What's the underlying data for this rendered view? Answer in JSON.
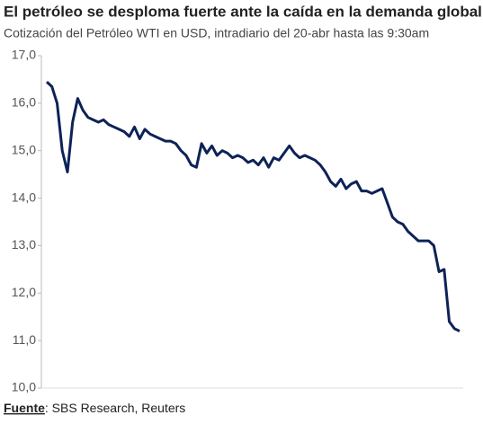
{
  "chart_data": {
    "type": "line",
    "title": "El petróleo se desploma fuerte ante la caída en la demanda global",
    "subtitle": "Cotización del Petróleo WTI en USD, intradiario del 20-abr hasta las 9:30am",
    "source_label": "Fuente",
    "source_text": ": SBS Research, Reuters",
    "color": "#0d2257",
    "ylim": [
      10,
      17
    ],
    "yticks": [
      {
        "value": 10,
        "label": "10,0"
      },
      {
        "value": 11,
        "label": "11,0"
      },
      {
        "value": 12,
        "label": "12,0"
      },
      {
        "value": 13,
        "label": "13,0"
      },
      {
        "value": 14,
        "label": "14,0"
      },
      {
        "value": 15,
        "label": "15,0"
      },
      {
        "value": 16,
        "label": "16,0"
      },
      {
        "value": 17,
        "label": "17,0"
      }
    ],
    "values": [
      16.45,
      16.35,
      16.0,
      15.0,
      14.55,
      15.6,
      16.1,
      15.85,
      15.7,
      15.65,
      15.6,
      15.65,
      15.55,
      15.5,
      15.45,
      15.4,
      15.3,
      15.5,
      15.25,
      15.45,
      15.35,
      15.3,
      15.25,
      15.2,
      15.2,
      15.15,
      15.0,
      14.9,
      14.7,
      14.65,
      15.15,
      14.95,
      15.1,
      14.9,
      15.0,
      14.95,
      14.85,
      14.9,
      14.85,
      14.75,
      14.8,
      14.7,
      14.85,
      14.65,
      14.85,
      14.8,
      14.95,
      15.1,
      14.95,
      14.85,
      14.9,
      14.85,
      14.8,
      14.7,
      14.55,
      14.35,
      14.25,
      14.4,
      14.2,
      14.3,
      14.35,
      14.15,
      14.15,
      14.1,
      14.15,
      14.2,
      13.9,
      13.6,
      13.5,
      13.45,
      13.3,
      13.2,
      13.1,
      13.1,
      13.1,
      13.0,
      12.45,
      12.5,
      11.4,
      11.25,
      11.2
    ]
  }
}
